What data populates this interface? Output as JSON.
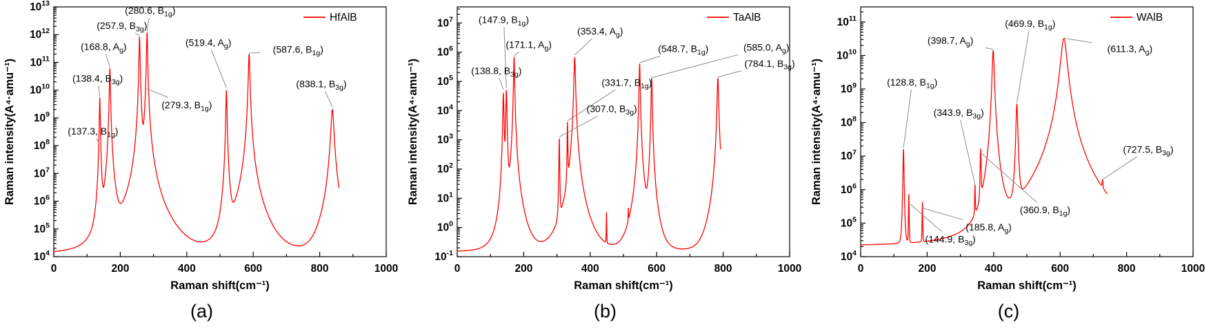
{
  "panel_letters": [
    "(a)",
    "(b)",
    "(c)"
  ],
  "chart_data": [
    {
      "type": "line",
      "series_name": "HfAlB",
      "line_color": "#ff0000",
      "leader_color": "#8c8c8c",
      "xlabel": "Raman shift(cm⁻¹)",
      "ylabel": "Raman intensity(A⁴·amu⁻¹)",
      "xlim": [
        0,
        1000
      ],
      "xticks_major": [
        0,
        200,
        400,
        600,
        800,
        1000
      ],
      "xticks_minor": [
        100,
        300,
        500,
        700,
        900
      ],
      "y_log_ticks": [
        4,
        5,
        6,
        7,
        8,
        9,
        10,
        11,
        12,
        13
      ],
      "y_log_range": [
        4,
        13
      ],
      "x_data_end": 858,
      "baseline": 13000,
      "legend_pos": "top-right",
      "grid": false,
      "peaks": [
        {
          "shift": 137.3,
          "mode": "B1g",
          "height": 100000000.0,
          "width": 1.0
        },
        {
          "shift": 138.4,
          "mode": "B3g",
          "height": 5000000000.0,
          "width": 1.3
        },
        {
          "shift": 168.8,
          "mode": "Ag",
          "height": 60000000000.0,
          "width": 1.5
        },
        {
          "shift": 257.9,
          "mode": "B3g",
          "height": 800000000000.0,
          "width": 1.5
        },
        {
          "shift": 279.3,
          "mode": "B1g",
          "height": 10000000000.0,
          "width": 1.0
        },
        {
          "shift": 280.6,
          "mode": "B1g",
          "height": 1200000000000.0,
          "width": 1.5
        },
        {
          "shift": 519.4,
          "mode": "Ag",
          "height": 10000000000.0,
          "width": 1.5
        },
        {
          "shift": 587.6,
          "mode": "B1g",
          "height": 200000000000.0,
          "width": 2.0
        },
        {
          "shift": 838.1,
          "mode": "B3g",
          "height": 2000000000.0,
          "width": 4.0
        }
      ],
      "annotations": [
        {
          "text": "280.6",
          "mode": "B1g",
          "x": 280.6,
          "label_x": 290,
          "label_logy": 12.75,
          "tip_logy": 12.12
        },
        {
          "text": "257.9",
          "mode": "B3g",
          "x": 257.9,
          "label_x": 205,
          "label_logy": 12.2,
          "tip_logy": 11.97
        },
        {
          "text": "168.8",
          "mode": "Ag",
          "x": 168.8,
          "label_x": 150,
          "label_logy": 11.45,
          "tip_logy": 10.82
        },
        {
          "text": "138.4",
          "mode": "B3g",
          "x": 138.4,
          "label_x": 132,
          "label_logy": 10.3,
          "tip_logy": 9.75
        },
        {
          "text": "137.3",
          "mode": "B1g",
          "x": 137.3,
          "label_x": 118,
          "label_logy": 8.4,
          "tip_logy": 8.05
        },
        {
          "text": "519.4",
          "mode": "Ag",
          "x": 519.4,
          "label_x": 465,
          "label_logy": 11.6,
          "tip_logy": 10.08
        },
        {
          "text": "587.6",
          "mode": "B1g",
          "x": 587.6,
          "label_x": 735,
          "label_logy": 11.35,
          "tip_logy": 11.33
        },
        {
          "text": "838.1",
          "mode": "B3g",
          "x": 838.1,
          "label_x": 805,
          "label_logy": 10.1,
          "tip_logy": 9.4
        },
        {
          "text": "279.3",
          "mode": "B1g",
          "x": 279.3,
          "label_x": 400,
          "label_logy": 9.35,
          "tip_logy": 10.05
        }
      ]
    },
    {
      "type": "line",
      "series_name": "TaAlB",
      "line_color": "#ff0000",
      "leader_color": "#8c8c8c",
      "xlabel": "Raman shift(cm⁻¹)",
      "ylabel": "Raman intensity(A⁴·amu⁻¹)",
      "xlim": [
        0,
        1000
      ],
      "xticks_major": [
        0,
        200,
        400,
        600,
        800,
        1000
      ],
      "xticks_minor": [
        100,
        300,
        500,
        700,
        900
      ],
      "y_log_ticks": [
        -1,
        0,
        1,
        2,
        3,
        4,
        5,
        6,
        7
      ],
      "y_log_range": [
        -1,
        7.55
      ],
      "x_data_end": 792,
      "baseline": 0.15,
      "legend_pos": "top-right",
      "grid": false,
      "peaks": [
        {
          "shift": 138.8,
          "mode": "B3g",
          "height": 40000.0,
          "width": 1.5
        },
        {
          "shift": 147.9,
          "mode": "B1g",
          "height": 50000.0,
          "width": 1.5
        },
        {
          "shift": 171.1,
          "mode": "Ag",
          "height": 650000.0,
          "width": 1.5
        },
        {
          "shift": 307.0,
          "mode": "B3g",
          "height": 1100.0,
          "width": 1.0
        },
        {
          "shift": 331.7,
          "mode": "B1g",
          "height": 4000.0,
          "width": 1.0
        },
        {
          "shift": 353.4,
          "mode": "Ag",
          "height": 650000.0,
          "width": 2.0
        },
        {
          "shift": 449.0,
          "height": 3.0,
          "width": 0.8
        },
        {
          "shift": 515.0,
          "height": 3.0,
          "width": 0.8
        },
        {
          "shift": 548.7,
          "mode": "B1g",
          "height": 400000.0,
          "width": 1.5
        },
        {
          "shift": 585.0,
          "mode": "Ag",
          "height": 130000.0,
          "width": 1.5
        },
        {
          "shift": 784.1,
          "mode": "B3g",
          "height": 130000.0,
          "width": 2.0
        }
      ],
      "annotations": [
        {
          "text": "147.9",
          "mode": "B1g",
          "x": 147.9,
          "label_x": 140,
          "label_logy": 7.0,
          "tip_logy": 4.78
        },
        {
          "text": "171.1",
          "mode": "Ag",
          "x": 171.1,
          "label_x": 215,
          "label_logy": 6.15,
          "tip_logy": 5.88
        },
        {
          "text": "138.8",
          "mode": "B3g",
          "x": 138.8,
          "label_x": 118,
          "label_logy": 5.25,
          "tip_logy": 4.72
        },
        {
          "text": "353.4",
          "mode": "Ag",
          "x": 353.4,
          "label_x": 430,
          "label_logy": 6.6,
          "tip_logy": 5.9
        },
        {
          "text": "548.7",
          "mode": "B1g",
          "x": 548.7,
          "label_x": 680,
          "label_logy": 6.0,
          "tip_logy": 5.64
        },
        {
          "text": "585.0",
          "mode": "Ag",
          "x": 585.0,
          "label_x": 930,
          "label_logy": 6.05,
          "tip_logy": 5.13
        },
        {
          "text": "784.1",
          "mode": "B3g",
          "x": 784.1,
          "label_x": 940,
          "label_logy": 5.5,
          "tip_logy": 5.15
        },
        {
          "text": "331.7",
          "mode": "B1g",
          "x": 331.7,
          "label_x": 510,
          "label_logy": 4.85,
          "tip_logy": 3.65
        },
        {
          "text": "307.0",
          "mode": "B3g",
          "x": 307.0,
          "label_x": 465,
          "label_logy": 3.95,
          "tip_logy": 3.1
        }
      ]
    },
    {
      "type": "line",
      "series_name": "WAlB",
      "line_color": "#ff0000",
      "leader_color": "#8c8c8c",
      "xlabel": "Raman shift(cm⁻¹)",
      "ylabel": "Raman intensity(A⁴·amu⁻¹)",
      "xlim": [
        0,
        1000
      ],
      "xticks_major": [
        0,
        200,
        400,
        600,
        800,
        1000
      ],
      "xticks_minor": [
        100,
        300,
        500,
        700,
        900
      ],
      "y_log_ticks": [
        4,
        5,
        6,
        7,
        8,
        9,
        10,
        11
      ],
      "y_log_range": [
        4,
        11.45
      ],
      "x_data_end": 742,
      "baseline": 21000,
      "legend_pos": "top-right",
      "grid": false,
      "peaks": [
        {
          "shift": 128.8,
          "mode": "B1g",
          "height": 16000000.0,
          "width": 1.5
        },
        {
          "shift": 144.9,
          "mode": "B3g",
          "height": 700000.0,
          "width": 1.0
        },
        {
          "shift": 185.8,
          "mode": "Ag",
          "height": 400000.0,
          "width": 1.0
        },
        {
          "shift": 343.9,
          "mode": "B3g",
          "height": 1200000.0,
          "width": 1.2
        },
        {
          "shift": 360.9,
          "mode": "B1g",
          "height": 16000000.0,
          "width": 1.5
        },
        {
          "shift": 398.7,
          "mode": "Ag",
          "height": 14000000000.0,
          "width": 3.0
        },
        {
          "shift": 469.9,
          "mode": "B1g",
          "height": 350000000.0,
          "width": 2.5
        },
        {
          "shift": 611.3,
          "mode": "Ag",
          "height": 32000000000.0,
          "width": 9.0
        },
        {
          "shift": 727.5,
          "mode": "B3g",
          "height": 800000.0,
          "width": 2.0
        }
      ],
      "annotations": [
        {
          "text": "469.9",
          "mode": "B1g",
          "x": 469.9,
          "label_x": 510,
          "label_logy": 10.85,
          "tip_logy": 8.6
        },
        {
          "text": "398.7",
          "mode": "Ag",
          "x": 398.7,
          "label_x": 270,
          "label_logy": 10.35,
          "tip_logy": 10.18
        },
        {
          "text": "611.3",
          "mode": "Ag",
          "x": 611.3,
          "label_x": 810,
          "label_logy": 10.1,
          "tip_logy": 10.52
        },
        {
          "text": "128.8",
          "mode": "B1g",
          "x": 128.8,
          "label_x": 155,
          "label_logy": 9.1,
          "tip_logy": 7.25
        },
        {
          "text": "343.9",
          "mode": "B3g",
          "x": 343.9,
          "label_x": 295,
          "label_logy": 8.2,
          "tip_logy": 6.15
        },
        {
          "text": "727.5",
          "mode": "B3g",
          "x": 727.5,
          "label_x": 865,
          "label_logy": 7.1,
          "tip_logy": 6.3
        },
        {
          "text": "360.9",
          "mode": "B1g",
          "x": 360.9,
          "label_x": 555,
          "label_logy": 5.3,
          "tip_logy": 7.1
        },
        {
          "text": "185.8",
          "mode": "Ag",
          "x": 185.8,
          "label_x": 385,
          "label_logy": 4.78,
          "tip_logy": 5.45
        },
        {
          "text": "144.9",
          "mode": "B3g",
          "x": 144.9,
          "label_x": 270,
          "label_logy": 4.42,
          "tip_logy": 5.6
        }
      ]
    }
  ]
}
